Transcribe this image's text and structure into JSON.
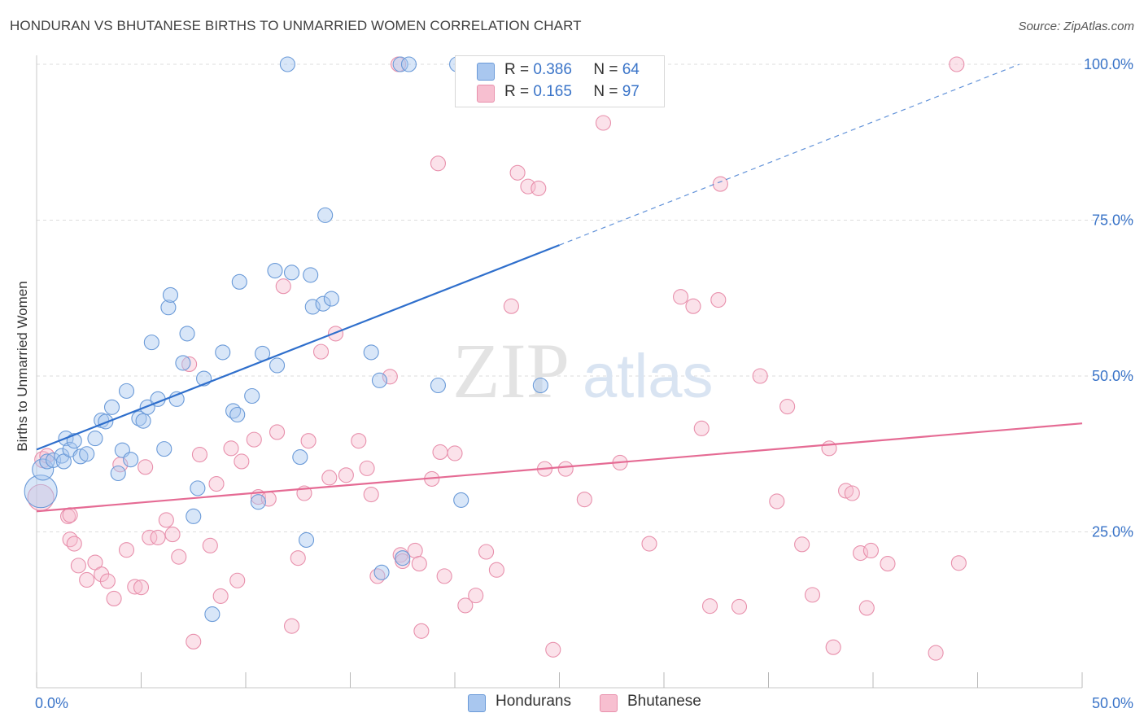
{
  "title": "HONDURAN VS BHUTANESE BIRTHS TO UNMARRIED WOMEN CORRELATION CHART",
  "source": "Source: ZipAtlas.com",
  "watermark": {
    "zip": "ZIP",
    "atlas": "atlas"
  },
  "colors": {
    "hondurans_fill": "#a9c7ef",
    "hondurans_stroke": "#6a9ad8",
    "hondurans_line": "#2f6fcc",
    "bhutanese_fill": "#f7bfd0",
    "bhutanese_stroke": "#e890ac",
    "bhutanese_line": "#e56b94",
    "axis_label": "#3a74c8",
    "grid": "#dddddd"
  },
  "legend_top": {
    "rows": [
      {
        "r_label": "R =",
        "r_value": "0.386",
        "n_label": "N =",
        "n_value": "64"
      },
      {
        "r_label": "R =",
        "r_value": "0.165",
        "n_label": "N =",
        "n_value": "97"
      }
    ]
  },
  "legend_bottom": {
    "items": [
      "Hondurans",
      "Bhutanese"
    ]
  },
  "chart_data": {
    "type": "scatter",
    "title": "HONDURAN VS BHUTANESE BIRTHS TO UNMARRIED WOMEN CORRELATION CHART",
    "xlabel": "",
    "ylabel": "Births to Unmarried Women",
    "xlim": [
      0,
      50
    ],
    "ylim": [
      0,
      100
    ],
    "x_tick_labels": [
      "0.0%",
      "50.0%"
    ],
    "y_tick_labels": [
      "25.0%",
      "50.0%",
      "75.0%",
      "100.0%"
    ],
    "y_ticks": [
      25,
      50,
      75,
      100
    ],
    "x_minor_ticks": [
      0,
      5,
      10,
      15,
      20,
      25,
      30,
      35,
      40,
      45,
      50
    ],
    "grid": true,
    "legend_placement": "bottom",
    "series": [
      {
        "name": "Hondurans",
        "r": 0.386,
        "n": 64,
        "trend": {
          "x": [
            0,
            25
          ],
          "y": [
            38.2,
            71.0
          ],
          "dashed_extension_to": [
            47.0,
            100
          ]
        },
        "points": [
          [
            0.2,
            31.5,
            20
          ],
          [
            0.3,
            35.0,
            13
          ],
          [
            0.5,
            36.3,
            9
          ],
          [
            0.8,
            36.5,
            9
          ],
          [
            1.2,
            37.2,
            9
          ],
          [
            1.3,
            36.3,
            9
          ],
          [
            1.4,
            40.0,
            9
          ],
          [
            1.6,
            38.2,
            9
          ],
          [
            1.8,
            39.6,
            9
          ],
          [
            2.1,
            37.1,
            9
          ],
          [
            2.4,
            37.5,
            9
          ],
          [
            2.8,
            40.0,
            9
          ],
          [
            3.1,
            42.9,
            9
          ],
          [
            3.3,
            42.7,
            9
          ],
          [
            3.6,
            45.0,
            9
          ],
          [
            3.9,
            34.4,
            9
          ],
          [
            4.1,
            38.1,
            9
          ],
          [
            4.3,
            47.6,
            9
          ],
          [
            4.5,
            36.6,
            9
          ],
          [
            4.9,
            43.2,
            9
          ],
          [
            5.1,
            42.8,
            9
          ],
          [
            5.3,
            45.0,
            9
          ],
          [
            5.5,
            55.4,
            9
          ],
          [
            5.8,
            46.3,
            9
          ],
          [
            6.1,
            38.3,
            9
          ],
          [
            6.3,
            61.0,
            9
          ],
          [
            6.4,
            63.0,
            9
          ],
          [
            6.7,
            46.3,
            9
          ],
          [
            7.0,
            52.1,
            9
          ],
          [
            7.2,
            56.8,
            9
          ],
          [
            7.5,
            27.5,
            9
          ],
          [
            7.7,
            32.0,
            9
          ],
          [
            8.0,
            49.6,
            9
          ],
          [
            8.4,
            11.8,
            9
          ],
          [
            8.9,
            53.8,
            9
          ],
          [
            9.4,
            44.4,
            9
          ],
          [
            9.6,
            43.8,
            9
          ],
          [
            9.7,
            65.1,
            9
          ],
          [
            10.3,
            46.8,
            9
          ],
          [
            10.6,
            29.8,
            9
          ],
          [
            10.8,
            53.6,
            9
          ],
          [
            11.4,
            66.9,
            9
          ],
          [
            11.5,
            51.7,
            9
          ],
          [
            12.0,
            100,
            9
          ],
          [
            12.2,
            66.6,
            9
          ],
          [
            12.6,
            37.0,
            9
          ],
          [
            12.9,
            23.7,
            9
          ],
          [
            13.1,
            66.2,
            9
          ],
          [
            13.2,
            61.1,
            9
          ],
          [
            13.7,
            61.6,
            9
          ],
          [
            13.8,
            75.8,
            9
          ],
          [
            14.1,
            62.4,
            9
          ],
          [
            16.0,
            53.8,
            9
          ],
          [
            16.4,
            49.3,
            9
          ],
          [
            16.5,
            18.5,
            9
          ],
          [
            17.4,
            100,
            9
          ],
          [
            17.5,
            20.8,
            9
          ],
          [
            17.8,
            100,
            9
          ],
          [
            19.2,
            48.5,
            9
          ],
          [
            20.1,
            100,
            9
          ],
          [
            20.3,
            30.1,
            9
          ],
          [
            22.6,
            100,
            9
          ],
          [
            22.8,
            100,
            9
          ],
          [
            24.1,
            48.5,
            9
          ]
        ]
      },
      {
        "name": "Bhutanese",
        "r": 0.165,
        "n": 97,
        "trend": {
          "x": [
            0,
            50
          ],
          "y": [
            28.3,
            42.4
          ]
        },
        "points": [
          [
            0.2,
            30.5,
            16
          ],
          [
            0.3,
            36.6,
            10
          ],
          [
            0.5,
            37.2,
            9
          ],
          [
            1.5,
            27.5,
            9
          ],
          [
            1.6,
            27.7,
            9
          ],
          [
            1.6,
            23.8,
            9
          ],
          [
            1.8,
            23.1,
            9
          ],
          [
            2.0,
            19.6,
            9
          ],
          [
            2.4,
            17.3,
            9
          ],
          [
            2.8,
            20.1,
            9
          ],
          [
            3.1,
            18.2,
            9
          ],
          [
            3.4,
            17.1,
            9
          ],
          [
            3.7,
            14.3,
            9
          ],
          [
            4.0,
            35.8,
            9
          ],
          [
            4.3,
            22.1,
            9
          ],
          [
            4.7,
            16.2,
            9
          ],
          [
            5.0,
            16.1,
            9
          ],
          [
            5.2,
            35.4,
            9
          ],
          [
            5.4,
            24.1,
            9
          ],
          [
            5.8,
            24.1,
            9
          ],
          [
            6.2,
            26.9,
            9
          ],
          [
            6.5,
            24.6,
            9
          ],
          [
            6.8,
            21.0,
            9
          ],
          [
            7.3,
            51.9,
            9
          ],
          [
            7.5,
            7.4,
            9
          ],
          [
            7.8,
            37.4,
            9
          ],
          [
            8.3,
            22.8,
            9
          ],
          [
            8.6,
            32.7,
            9
          ],
          [
            8.8,
            14.7,
            9
          ],
          [
            9.3,
            38.4,
            9
          ],
          [
            9.6,
            17.2,
            9
          ],
          [
            9.8,
            36.3,
            9
          ],
          [
            10.4,
            39.8,
            9
          ],
          [
            10.6,
            30.6,
            9
          ],
          [
            11.1,
            30.3,
            9
          ],
          [
            11.5,
            41.0,
            9
          ],
          [
            11.8,
            64.4,
            9
          ],
          [
            12.2,
            9.9,
            9
          ],
          [
            12.5,
            20.8,
            9
          ],
          [
            12.8,
            31.2,
            9
          ],
          [
            13.0,
            39.6,
            9
          ],
          [
            13.6,
            53.9,
            9
          ],
          [
            14.0,
            33.7,
            9
          ],
          [
            14.3,
            56.8,
            9
          ],
          [
            14.8,
            34.1,
            9
          ],
          [
            15.4,
            39.6,
            9
          ],
          [
            15.8,
            35.2,
            9
          ],
          [
            16.0,
            31.0,
            9
          ],
          [
            16.3,
            17.9,
            9
          ],
          [
            16.9,
            49.9,
            9
          ],
          [
            17.3,
            100,
            9
          ],
          [
            17.4,
            21.3,
            9
          ],
          [
            17.5,
            20.3,
            9
          ],
          [
            18.1,
            22.0,
            9
          ],
          [
            18.3,
            19.9,
            9
          ],
          [
            18.4,
            9.1,
            9
          ],
          [
            18.9,
            33.5,
            9
          ],
          [
            19.2,
            84.1,
            9
          ],
          [
            19.3,
            37.8,
            9
          ],
          [
            19.5,
            17.9,
            9
          ],
          [
            20.0,
            37.6,
            9
          ],
          [
            20.5,
            13.2,
            9
          ],
          [
            21.0,
            14.8,
            9
          ],
          [
            21.5,
            21.8,
            9
          ],
          [
            22.0,
            18.9,
            9
          ],
          [
            22.7,
            61.2,
            9
          ],
          [
            23.0,
            82.6,
            9
          ],
          [
            23.5,
            80.4,
            9
          ],
          [
            24.0,
            80.1,
            9
          ],
          [
            24.3,
            35.1,
            9
          ],
          [
            24.7,
            6.1,
            9
          ],
          [
            25.3,
            35.1,
            9
          ],
          [
            26.2,
            30.2,
            9
          ],
          [
            27.1,
            90.6,
            9
          ],
          [
            27.9,
            36.1,
            9
          ],
          [
            29.3,
            23.1,
            9
          ],
          [
            30.8,
            62.7,
            9
          ],
          [
            31.4,
            61.2,
            9
          ],
          [
            31.8,
            41.6,
            9
          ],
          [
            32.2,
            13.1,
            9
          ],
          [
            32.6,
            62.2,
            9
          ],
          [
            32.7,
            80.8,
            9
          ],
          [
            33.6,
            13.0,
            9
          ],
          [
            34.6,
            50.0,
            9
          ],
          [
            35.4,
            29.9,
            9
          ],
          [
            35.9,
            45.1,
            9
          ],
          [
            36.6,
            23.0,
            9
          ],
          [
            37.1,
            14.9,
            9
          ],
          [
            37.9,
            38.4,
            9
          ],
          [
            38.1,
            6.5,
            9
          ],
          [
            38.7,
            31.6,
            9
          ],
          [
            39.0,
            31.2,
            9
          ],
          [
            39.4,
            21.6,
            9
          ],
          [
            39.7,
            12.8,
            9
          ],
          [
            39.9,
            22.0,
            9
          ],
          [
            40.7,
            19.9,
            9
          ],
          [
            43.0,
            5.6,
            9
          ],
          [
            44.0,
            100,
            9
          ],
          [
            44.1,
            20.0,
            9
          ]
        ]
      }
    ]
  }
}
